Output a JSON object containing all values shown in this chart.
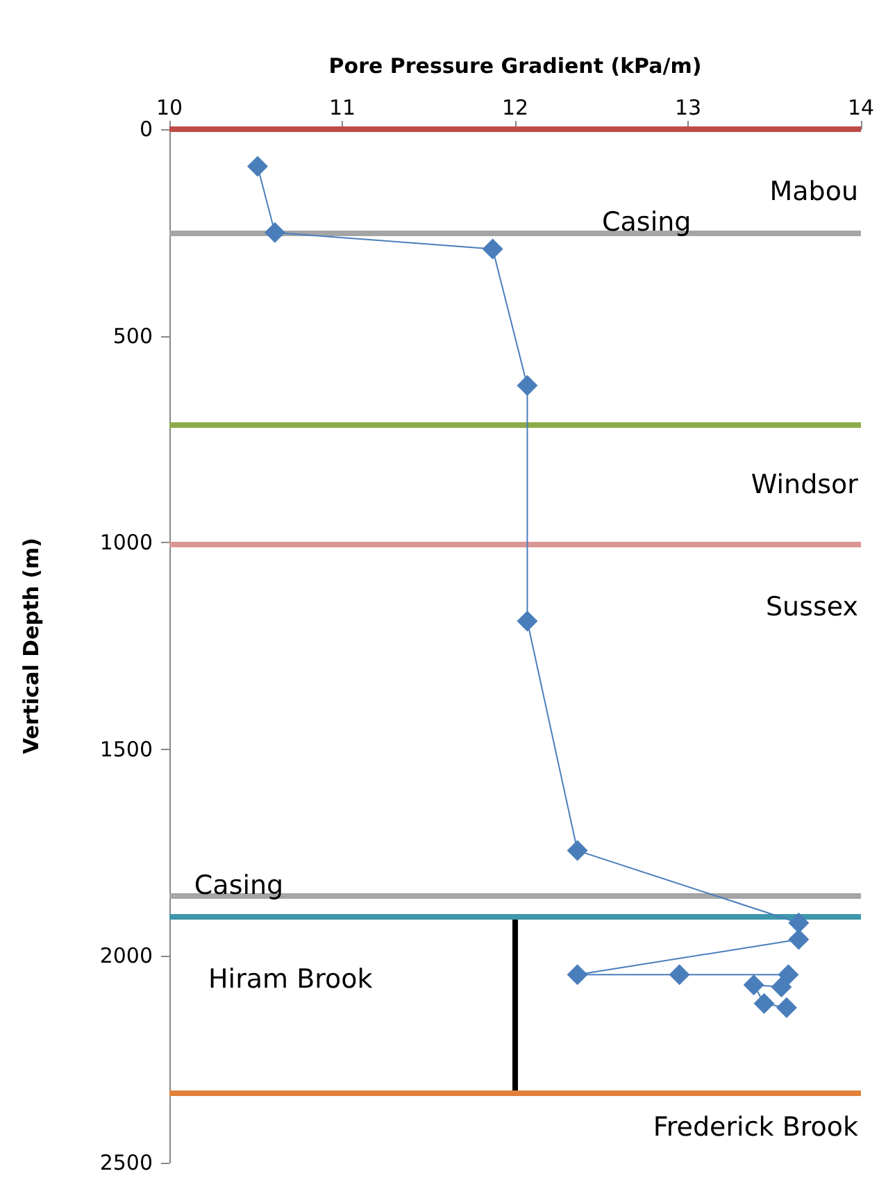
{
  "chart_data": {
    "type": "line",
    "xlabel": "Pore Pressure Gradient (kPa/m)",
    "ylabel": "Vertical Depth (m)",
    "xlim": [
      10,
      14
    ],
    "xticks": [
      10,
      11,
      12,
      13,
      14
    ],
    "ylim": [
      2500,
      0
    ],
    "yticks": [
      0,
      500,
      1000,
      1500,
      2000,
      2500
    ],
    "grid": false,
    "marker": "diamond",
    "line_style": "solid",
    "series": [
      {
        "color": "#4a7ebb",
        "x": [
          10.51,
          10.61,
          11.87,
          12.07,
          12.07,
          12.36,
          13.64,
          13.64,
          12.36,
          12.95,
          13.58,
          13.54,
          13.38,
          13.44,
          13.57
        ],
        "values": [
          90,
          250,
          290,
          620,
          1190,
          1745,
          1920,
          1960,
          2045,
          2045,
          2045,
          2075,
          2070,
          2115,
          2125
        ]
      },
      {
        "color": "#000000",
        "marker": "none",
        "x": [
          12,
          12
        ],
        "values": [
          1905,
          2330
        ]
      }
    ],
    "ref_lines": [
      {
        "axis": "y",
        "value": 0,
        "color": "#be4b48",
        "label": "Mabou"
      },
      {
        "axis": "y",
        "value": 250,
        "color": "#a5a5a5",
        "label": "Casing"
      },
      {
        "axis": "y",
        "value": 715,
        "color": "#8caa4a",
        "label": "Windsor"
      },
      {
        "axis": "y",
        "value": 1005,
        "color": "#d99694",
        "label": "Sussex"
      },
      {
        "axis": "y",
        "value": 1855,
        "color": "#a5a5a5",
        "label": "Casing"
      },
      {
        "axis": "y",
        "value": 1905,
        "color": "#3e97aa",
        "label": "Hiram Brook"
      },
      {
        "axis": "y",
        "value": 2330,
        "color": "#e0823a",
        "label": "Frederick Brook"
      }
    ]
  }
}
